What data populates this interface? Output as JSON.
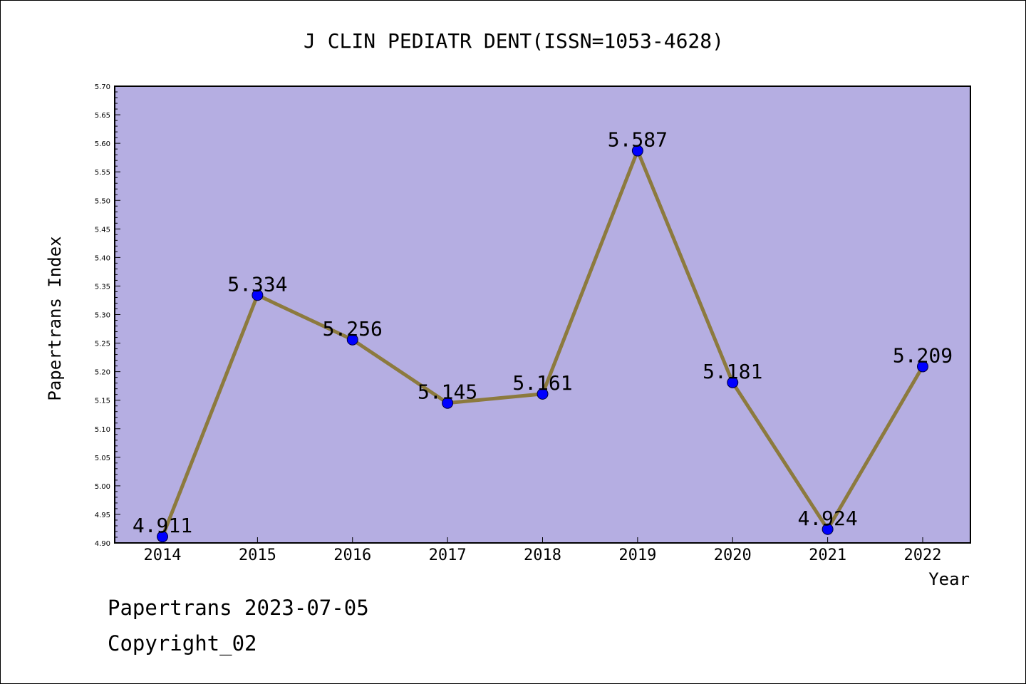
{
  "chart_data": {
    "type": "line",
    "title": "J CLIN PEDIATR DENT(ISSN=1053-4628)",
    "xlabel": "Year",
    "ylabel": "Papertrans Index",
    "categories": [
      "2014",
      "2015",
      "2016",
      "2017",
      "2018",
      "2019",
      "2020",
      "2021",
      "2022"
    ],
    "values": [
      4.911,
      5.334,
      5.256,
      5.145,
      5.161,
      5.587,
      5.181,
      4.924,
      5.209
    ],
    "data_labels": [
      "4.911",
      "5.334",
      "5.256",
      "5.145",
      "5.161",
      "5.587",
      "5.181",
      "4.924",
      "5.209"
    ],
    "ylim": [
      4.9,
      5.7
    ],
    "yticks": [
      "4.90",
      "4.95",
      "5.00",
      "5.05",
      "5.10",
      "5.15",
      "5.20",
      "5.25",
      "5.30",
      "5.35",
      "5.40",
      "5.45",
      "5.50",
      "5.55",
      "5.60",
      "5.65",
      "5.70"
    ],
    "grid": false,
    "colors": {
      "plot_background": "#b5aee2",
      "line": "#8c7a3e",
      "marker": "#0000ff"
    }
  },
  "footer": {
    "line1": "Papertrans 2023-07-05",
    "line2": "Copyright_02"
  }
}
